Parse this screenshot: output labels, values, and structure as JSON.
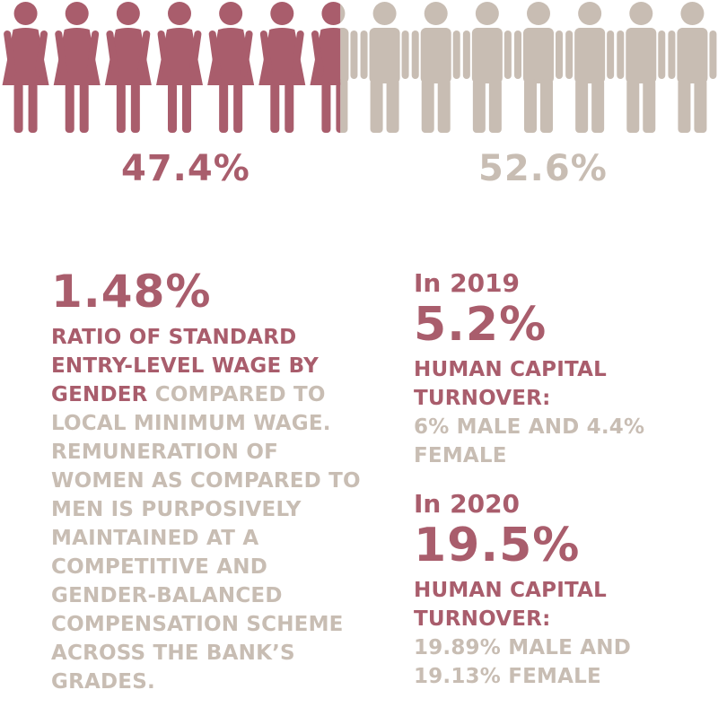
{
  "colors": {
    "female": "#a95d6c",
    "male": "#c8bdb3"
  },
  "chart_data": {
    "type": "pictograph",
    "total_icons": 14,
    "series": [
      {
        "name": "female",
        "value": 47.4,
        "label": "47.4%"
      },
      {
        "name": "male",
        "value": 52.6,
        "label": "52.6%"
      }
    ]
  },
  "left": {
    "big_value": "1.48%",
    "caption_highlight": "RATIO OF STANDARD ENTRY-LEVEL WAGE BY GENDER",
    "caption_rest": " COMPARED TO LOCAL MINIMUM WAGE. REMUNERATION OF WOMEN AS COMPARED TO MEN IS PURPOSIVELY MAINTAINED AT A COMPETITIVE AND GENDER-BALANCED COMPENSATION SCHEME ACROSS THE BANK’S GRADES."
  },
  "right": {
    "blocks": [
      {
        "year": "In 2019",
        "value": "5.2%",
        "title": "HUMAN CAPITAL TURNOVER:",
        "detail": "6% MALE AND 4.4% FEMALE"
      },
      {
        "year": "In 2020",
        "value": "19.5%",
        "title": "HUMAN CAPITAL TURNOVER:",
        "detail": "19.89% MALE AND 19.13% FEMALE"
      }
    ]
  }
}
